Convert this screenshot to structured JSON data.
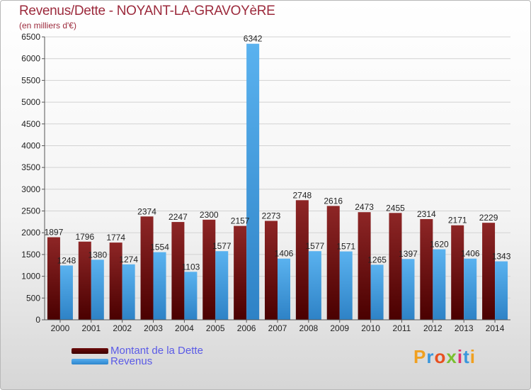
{
  "title": "Revenus/Dette - NOYANT-LA-GRAVOYèRE",
  "unit": "(en milliers d'€)",
  "brand": "Proxiti",
  "colors": {
    "debt": "#7a1414",
    "revenue": "#3a96dc",
    "title": "#9c2a3c",
    "legend_text": "#5a5ae6"
  },
  "chart_data": {
    "type": "bar",
    "categories": [
      "2000",
      "2001",
      "2002",
      "2003",
      "2004",
      "2005",
      "2006",
      "2007",
      "2008",
      "2009",
      "2010",
      "2011",
      "2012",
      "2013",
      "2014"
    ],
    "series": [
      {
        "name": "Montant de la Dette",
        "values": [
          1897,
          1796,
          1774,
          2374,
          2247,
          2300,
          2157,
          2273,
          2748,
          2616,
          2473,
          2455,
          2314,
          2171,
          2229
        ]
      },
      {
        "name": "Revenus",
        "values": [
          1248,
          1380,
          1274,
          1554,
          1103,
          1577,
          6342,
          1406,
          1577,
          1571,
          1265,
          1397,
          1620,
          1406,
          1343
        ]
      }
    ],
    "ylim": [
      0,
      6500
    ],
    "yticks": [
      0,
      500,
      1000,
      1500,
      2000,
      2500,
      3000,
      3500,
      4000,
      4500,
      5000,
      5500,
      6000,
      6500
    ],
    "grid": true,
    "legend": "bottom-left"
  }
}
